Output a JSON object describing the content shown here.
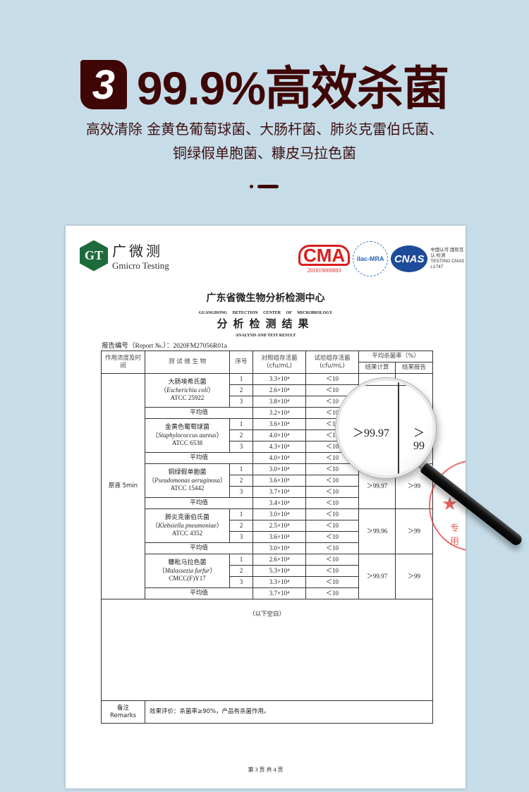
{
  "hero": {
    "badge_number": "3",
    "title": "99.9%高效杀菌",
    "subtitle_line1": "高效清除 金黄色葡萄球菌、大肠杆菌、肺炎克雷伯氏菌、",
    "subtitle_line2": "铜绿假单胞菌、糠皮马拉色菌"
  },
  "report": {
    "logo": {
      "mark": "GT",
      "name_cn": "广微测",
      "name_en": "Gmicro Testing"
    },
    "certs": {
      "cma": "CMA",
      "cma_no": "201819000883",
      "ilac": "ilac-MRA",
      "cnas": "CNAS",
      "cnas_text": "中国认可 国际互认 检测 TESTING CNAS L1747"
    },
    "org_cn": "广东省微生物分析检测中心",
    "org_en": "GUANGDONG DETECTION CENTER OF MICROBIOLOGY",
    "title_cn": "分析检测结果",
    "title_en": "ANALYSIS AND TEST RESULT",
    "report_no": "报告编号（Report №.）：2020FM27056R01a",
    "headers": {
      "conc": "作用浓度及时间",
      "microbe": "测 试 微 生 物",
      "seq": "序号",
      "control": "对照组存活菌 (cfu/mL)",
      "test": "试验组存活菌 (cfu/mL)",
      "rate": "平均杀菌率（%）",
      "calc": "结果计算",
      "result": "结果报告"
    },
    "conc_value": "原液 5min",
    "avg_label": "平均值",
    "groups": [
      {
        "name_cn": "大肠埃希氏菌",
        "name_latin": "Escherichia coli",
        "strain": "ATCC 25922",
        "trials": [
          {
            "seq": "1",
            "control": "3.3×10⁴",
            "test": "＜10"
          },
          {
            "seq": "2",
            "control": "2.6×10⁴",
            "test": "＜10"
          },
          {
            "seq": "3",
            "control": "3.8×10⁴",
            "test": "＜10"
          }
        ],
        "avg_control": "3.2×10⁴",
        "avg_test": "＜10",
        "calc": "",
        "result": ""
      },
      {
        "name_cn": "金黄色葡萄球菌",
        "name_latin": "Staphylococcus aureus",
        "strain": "ATCC 6538",
        "trials": [
          {
            "seq": "1",
            "control": "3.6×10⁴",
            "test": "＜10"
          },
          {
            "seq": "2",
            "control": "4.0×10⁴",
            "test": "＜10"
          },
          {
            "seq": "3",
            "control": "4.3×10⁴",
            "test": "＜10"
          }
        ],
        "avg_control": "4.0×10⁴",
        "avg_test": "＜10",
        "calc": "",
        "result": ""
      },
      {
        "name_cn": "铜绿假单胞菌",
        "name_latin": "Pseudomonas aeruginosa",
        "strain": "ATCC 15442",
        "trials": [
          {
            "seq": "1",
            "control": "3.0×10⁴",
            "test": "＜10"
          },
          {
            "seq": "2",
            "control": "3.6×10⁴",
            "test": "＜10"
          },
          {
            "seq": "3",
            "control": "3.7×10⁴",
            "test": "＜10"
          }
        ],
        "avg_control": "3.4×10⁴",
        "avg_test": "＜10",
        "calc": "＞99.97",
        "result": "＞99"
      },
      {
        "name_cn": "肺炎克雷伯氏菌",
        "name_latin": "Klebsiella pneumoniae",
        "strain": "ATCC 4352",
        "trials": [
          {
            "seq": "1",
            "control": "3.0×10⁴",
            "test": "＜10"
          },
          {
            "seq": "2",
            "control": "2.5×10⁴",
            "test": "＜10"
          },
          {
            "seq": "3",
            "control": "3.6×10⁴",
            "test": "＜10"
          }
        ],
        "avg_control": "3.0×10⁴",
        "avg_test": "＜10",
        "calc": "＞99.96",
        "result": "＞99"
      },
      {
        "name_cn": "糠秕马拉色菌",
        "name_latin": "Malassezia furfur",
        "strain": "CMCC(F)Y17",
        "trials": [
          {
            "seq": "1",
            "control": "2.6×10⁴",
            "test": "＜10"
          },
          {
            "seq": "2",
            "control": "5.3×10⁴",
            "test": "＜10"
          },
          {
            "seq": "3",
            "control": "3.3×10⁴",
            "test": "＜10"
          }
        ],
        "avg_control": "3.7×10⁴",
        "avg_test": "＜10",
        "calc": "＞99.97",
        "result": "＞99"
      }
    ],
    "blank_note": "（以下空白）",
    "remarks_label_cn": "备注",
    "remarks_label_en": "Remarks",
    "remarks_text": "效果评价：杀菌率≥90%，产品有杀菌作用。",
    "footer": "第 3 页 共 4 页",
    "stamp_text": "专用"
  },
  "magnifier": {
    "calc": "＞99.97",
    "result": "＞99"
  },
  "colors": {
    "background": "#c6dde9",
    "title": "#3f0606",
    "stamp": "#e23a3a"
  }
}
